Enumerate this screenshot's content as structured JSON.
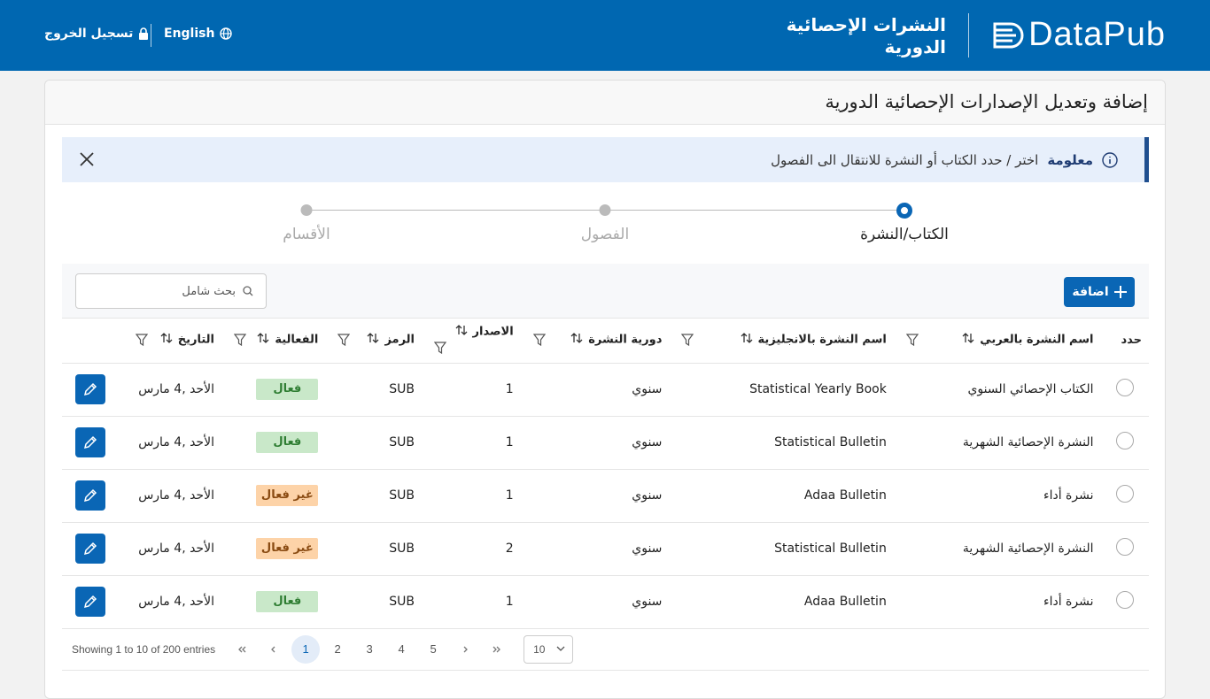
{
  "header": {
    "brand": "DataPub",
    "title_line1": "النشرات الإحصائية",
    "title_line2": "الدورية",
    "language": "English",
    "logout": "تسجيل الخروج"
  },
  "page_title": "إضافة وتعديل الإصدارات الإحصائية الدورية",
  "info": {
    "label": "معلومة",
    "message": "اختر / حدد الكتاب أو النشرة للانتقال الى الفصول"
  },
  "steps": [
    "الكتاب/النشرة",
    "الفصول",
    "الأقسام"
  ],
  "toolbar": {
    "add": "اضافة",
    "search_placeholder": "بحث شامل"
  },
  "table": {
    "columns": [
      "حدد",
      "اسم النشرة بالعربي",
      "اسم النشرة بالانجليزية",
      "دورية النشرة",
      "الاصدار",
      "الرمز",
      "الفعالية",
      "التاريخ"
    ],
    "rows": [
      {
        "name_ar": "الكتاب الإحصائي السنوي",
        "name_en": "Statistical Yearly Book",
        "period": "سنوي",
        "version": 1,
        "code": "SUB",
        "status": "فعال",
        "status_bg": "#c9e8c9",
        "status_fg": "#2e7d32",
        "date": "الأحد ,4 مارس"
      },
      {
        "name_ar": "النشرة الإحصائية الشهرية",
        "name_en": "Statistical Bulletin",
        "period": "سنوي",
        "version": 1,
        "code": "SUB",
        "status": "فعال",
        "status_bg": "#c9e8c9",
        "status_fg": "#2e7d32",
        "date": "الأحد ,4 مارس"
      },
      {
        "name_ar": "نشرة أداء",
        "name_en": "Adaa Bulletin",
        "period": "سنوي",
        "version": 1,
        "code": "SUB",
        "status": "غير فعال",
        "status_bg": "#fdd3a8",
        "status_fg": "#8a4b12",
        "date": "الأحد ,4 مارس"
      },
      {
        "name_ar": "النشرة الإحصائية الشهرية",
        "name_en": "Statistical Bulletin",
        "period": "سنوي",
        "version": 2,
        "code": "SUB",
        "status": "غير فعال",
        "status_bg": "#fdd3a8",
        "status_fg": "#8a4b12",
        "date": "الأحد ,4 مارس"
      },
      {
        "name_ar": "نشرة أداء",
        "name_en": "Adaa Bulletin",
        "period": "سنوي",
        "version": 1,
        "code": "SUB",
        "status": "فعال",
        "status_bg": "#c9e8c9",
        "status_fg": "#2e7d32",
        "date": "الأحد ,4 مارس"
      }
    ]
  },
  "pagination": {
    "summary": "Showing 1 to 10 of 200 entries",
    "pages": [
      1,
      2,
      3,
      4,
      5
    ],
    "page_size": 10
  }
}
